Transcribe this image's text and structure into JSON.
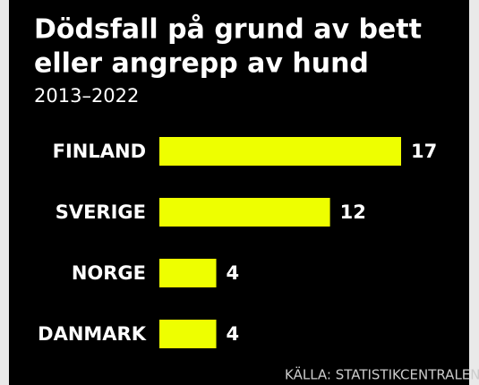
{
  "chart_data": {
    "type": "bar",
    "orientation": "horizontal",
    "title": [
      "Dödsfall på grund av bett",
      "eller angrepp av hund"
    ],
    "subtitle": "2013–2022",
    "categories": [
      "FINLAND",
      "SVERIGE",
      "NORGE",
      "DANMARK"
    ],
    "values": [
      17,
      12,
      4,
      4
    ],
    "color": "#eeff00",
    "source": "KÄLLA: STATISTIKCENTRALEN,"
  }
}
